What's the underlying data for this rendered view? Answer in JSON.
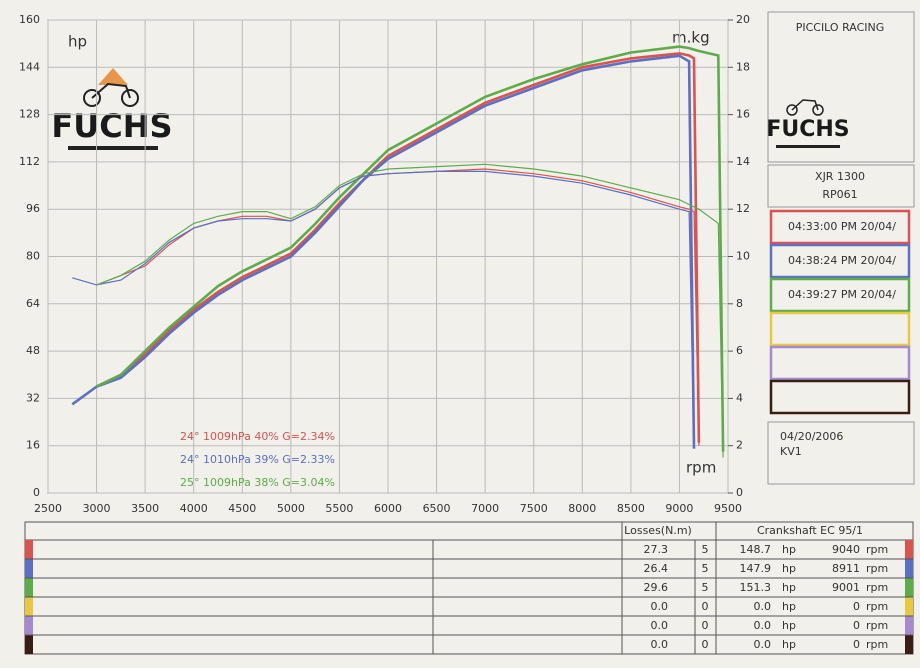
{
  "chart_data": {
    "type": "line",
    "ylabel": "hp",
    "y2label": "m.kg",
    "xlabel": "rpm",
    "logo": "FUCHS",
    "x": [
      2750,
      3000,
      3250,
      3500,
      3750,
      4000,
      4250,
      4500,
      4750,
      5000,
      5250,
      5500,
      5750,
      6000,
      6500,
      7000,
      7500,
      8000,
      8500,
      9000,
      9100,
      9150,
      9200,
      9400,
      9450
    ],
    "xlim": [
      2500,
      9500
    ],
    "xticks": [
      2500,
      3000,
      3500,
      4000,
      4500,
      5000,
      5500,
      6000,
      6500,
      7000,
      7500,
      8000,
      8500,
      9000,
      9500
    ],
    "ylim": [
      0,
      160
    ],
    "yticks": [
      0,
      16,
      32,
      48,
      64,
      80,
      96,
      112,
      128,
      144,
      160
    ],
    "y2lim": [
      0,
      20
    ],
    "y2ticks": [
      0,
      2,
      4,
      6,
      8,
      10,
      12,
      14,
      16,
      18,
      20
    ],
    "grid": true,
    "series": [
      {
        "color": "#d9534f",
        "values": [
          null,
          36,
          40,
          47,
          55,
          62,
          68,
          73,
          77,
          81,
          89,
          98,
          106,
          114,
          123,
          132,
          138,
          144,
          147,
          148.7,
          148,
          147,
          17,
          null,
          null
        ]
      },
      {
        "color": "#5b6fc4",
        "values": [
          30,
          36,
          39,
          46,
          54,
          61,
          67,
          72,
          76,
          80,
          88,
          97,
          106,
          113,
          122,
          131,
          137,
          143,
          146,
          147.9,
          146,
          15,
          null,
          null,
          null
        ]
      },
      {
        "color": "#5cad4a",
        "values": [
          null,
          36,
          40,
          48,
          56,
          63,
          70,
          75,
          79,
          83,
          91,
          100,
          108,
          116,
          125,
          134,
          140,
          145,
          149,
          151,
          150.5,
          150,
          149.5,
          148,
          14
        ]
      },
      {
        "color": "#d9534f",
        "axis": "y2",
        "values": [
          null,
          8.8,
          9.2,
          9.6,
          10.5,
          11.2,
          11.5,
          11.7,
          11.7,
          11.5,
          12.0,
          12.9,
          13.4,
          13.5,
          13.6,
          13.7,
          13.5,
          13.2,
          12.7,
          12.1,
          12.0,
          11.9,
          2,
          null,
          null
        ]
      },
      {
        "color": "#5b6fc4",
        "axis": "y2",
        "values": [
          9.1,
          8.8,
          9.0,
          9.7,
          10.6,
          11.2,
          11.5,
          11.6,
          11.6,
          11.5,
          12.0,
          12.9,
          13.4,
          13.5,
          13.6,
          13.6,
          13.4,
          13.1,
          12.6,
          12.0,
          11.9,
          1.9,
          null,
          null,
          null
        ]
      },
      {
        "color": "#5cad4a",
        "axis": "y2",
        "values": [
          null,
          8.8,
          9.2,
          9.8,
          10.7,
          11.4,
          11.7,
          11.9,
          11.9,
          11.6,
          12.1,
          13.0,
          13.5,
          13.7,
          13.8,
          13.9,
          13.7,
          13.4,
          12.9,
          12.4,
          12.2,
          12.1,
          12.0,
          11.4,
          1.5
        ]
      }
    ],
    "annotations": [
      {
        "text": "24°  1009hPa  40%     G=2.34%",
        "color": "#d9534f"
      },
      {
        "text": "24°  1010hPa  39%     G=2.33%",
        "color": "#5b6fc4"
      },
      {
        "text": "25°  1009hPa  38%     G=3.04%",
        "color": "#5cad4a"
      }
    ]
  },
  "panel": {
    "title": "PICCILO RACING",
    "logo": "FUCHS",
    "model": "XJR 1300",
    "code": "RP061",
    "runs": [
      {
        "label": "04:33:00 PM  20/04/",
        "color": "#d9534f"
      },
      {
        "label": "04:38:24 PM  20/04/",
        "color": "#5b6fc4"
      },
      {
        "label": "04:39:27 PM  20/04/",
        "color": "#5cad4a"
      },
      {
        "color": "#e8c840"
      },
      {
        "color": "#a58ad0"
      },
      {
        "color": "#3a1e14"
      }
    ],
    "date": "04/20/2006",
    "note": "KV1"
  },
  "table": {
    "header": [
      "Losses(N.m)",
      "Crankshaft EC 95/1"
    ],
    "rows": [
      {
        "color": "#d9534f",
        "cells": [
          "27.3",
          "5",
          "148.7",
          "hp",
          "9040",
          "rpm"
        ]
      },
      {
        "color": "#5b6fc4",
        "cells": [
          "26.4",
          "5",
          "147.9",
          "hp",
          "8911",
          "rpm"
        ]
      },
      {
        "color": "#5cad4a",
        "cells": [
          "29.6",
          "5",
          "151.3",
          "hp",
          "9001",
          "rpm"
        ]
      },
      {
        "color": "#e8c840",
        "cells": [
          "0.0",
          "0",
          "0.0",
          "hp",
          "0",
          "rpm"
        ]
      },
      {
        "color": "#a58ad0",
        "cells": [
          "0.0",
          "0",
          "0.0",
          "hp",
          "0",
          "rpm"
        ]
      },
      {
        "color": "#3a1e14",
        "cells": [
          "0.0",
          "0",
          "0.0",
          "hp",
          "0",
          "rpm"
        ]
      }
    ]
  }
}
